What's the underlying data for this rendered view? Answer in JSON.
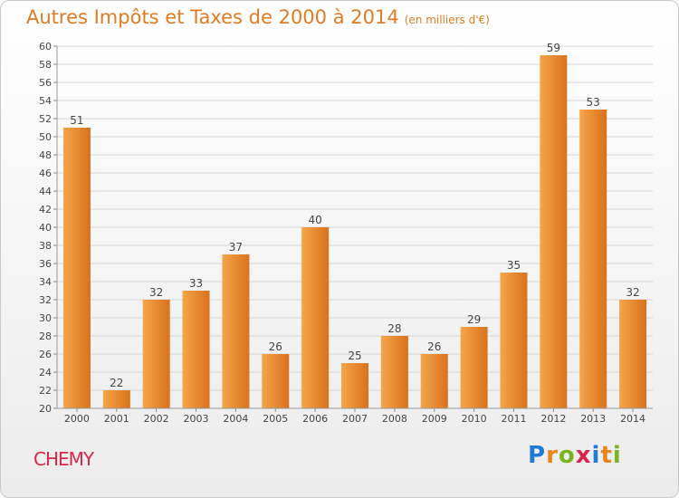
{
  "header": {
    "title": "Autres Impôts et Taxes de 2000 à 2014",
    "unit": "(en milliers d'€)"
  },
  "footer": {
    "commune": "CHEMY",
    "brand_letters": [
      {
        "ch": "P",
        "color": "#1f7bd6"
      },
      {
        "ch": "r",
        "color": "#e8861c"
      },
      {
        "ch": "o",
        "color": "#7ab51d"
      },
      {
        "ch": "x",
        "color": "#d8264a"
      },
      {
        "ch": "i",
        "color": "#1f7bd6"
      },
      {
        "ch": "t",
        "color": "#e8861c"
      },
      {
        "ch": "i",
        "color": "#7ab51d"
      }
    ]
  },
  "colors": {
    "bar_light": "#f5a54a",
    "bar_dark": "#d9721c",
    "grid": "#d4d4d4",
    "title": "#e07b22",
    "commune": "#d8264a"
  },
  "chart_data": {
    "type": "bar",
    "categories": [
      "2000",
      "2001",
      "2002",
      "2003",
      "2004",
      "2005",
      "2006",
      "2007",
      "2008",
      "2009",
      "2010",
      "2011",
      "2012",
      "2013",
      "2014"
    ],
    "values": [
      51,
      22,
      32,
      33,
      37,
      26,
      40,
      25,
      28,
      26,
      29,
      35,
      59,
      53,
      32
    ],
    "ylim": [
      20,
      60
    ],
    "ytick_step": 2,
    "grid": true
  }
}
